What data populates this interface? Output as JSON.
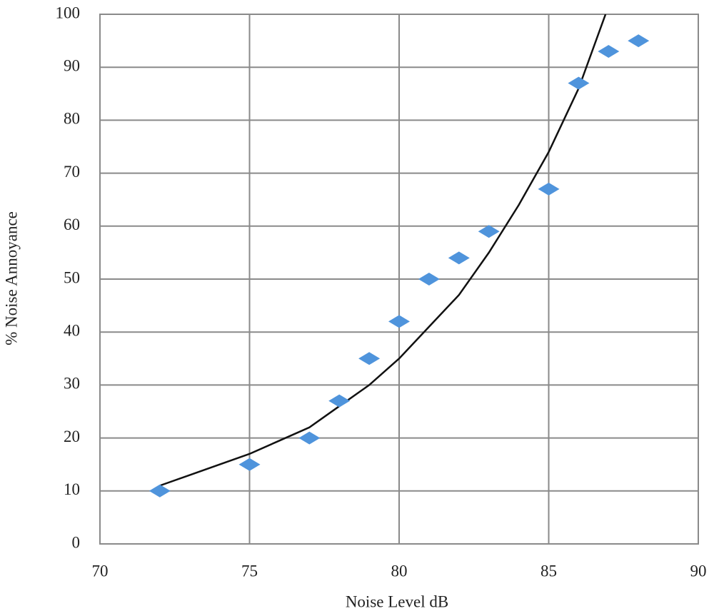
{
  "chart_data": {
    "type": "scatter",
    "xlabel": "Noise Level dB",
    "ylabel": "% Noise Annoyance",
    "xlim": [
      70,
      90
    ],
    "xticks": [
      70,
      75,
      80,
      85,
      90
    ],
    "ylim": [
      0,
      100
    ],
    "yticks": [
      0,
      10,
      20,
      30,
      40,
      50,
      60,
      70,
      80,
      90,
      100
    ],
    "grid": true,
    "series": [
      {
        "style": "markers",
        "marker": "diamond",
        "color": "#4f94dc",
        "x": [
          72,
          75,
          77,
          78,
          79,
          80,
          81,
          82,
          83,
          85,
          86,
          87,
          88
        ],
        "values": [
          10,
          15,
          20,
          27,
          35,
          42,
          50,
          54,
          59,
          67,
          87,
          93,
          95
        ]
      },
      {
        "style": "line",
        "color": "#111111",
        "x": [
          72,
          73,
          74,
          75,
          76,
          77,
          78,
          79,
          80,
          81,
          82,
          83,
          84,
          85,
          86,
          86.9
        ],
        "values": [
          11,
          13,
          15,
          17,
          19.5,
          22,
          26,
          30,
          35,
          41,
          47,
          55,
          64,
          74,
          86,
          100
        ]
      }
    ]
  }
}
